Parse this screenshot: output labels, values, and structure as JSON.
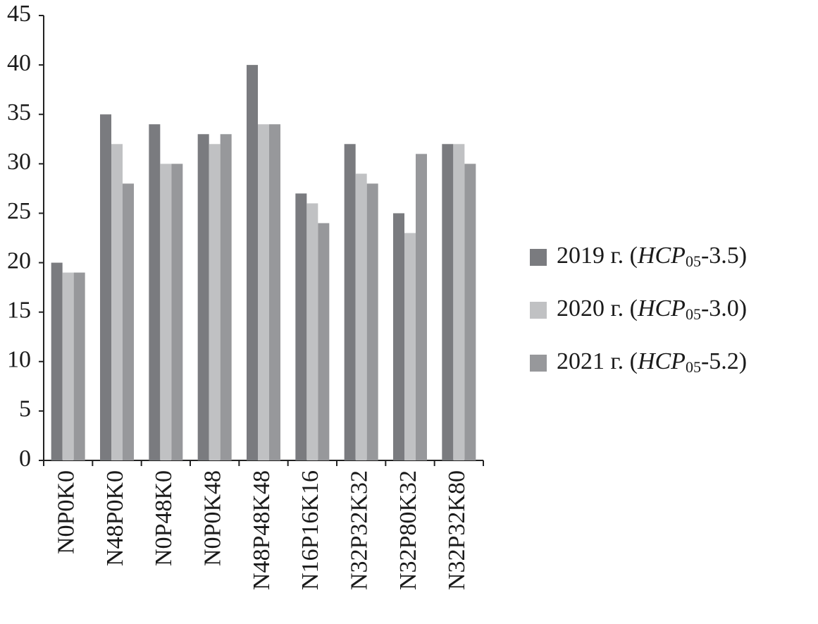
{
  "chart_data": {
    "type": "bar",
    "categories": [
      "N0P0K0",
      "N48P0K0",
      "N0P48K0",
      "N0P0K48",
      "N48P48K48",
      "N16P16K16",
      "N32P32K32",
      "N32P80K32",
      "N32P32K80"
    ],
    "series": [
      {
        "name": "2019 г. (HCP05-3.5)",
        "color": "#7a7b7f",
        "values": [
          20,
          35,
          34,
          33,
          40,
          27,
          32,
          25,
          32
        ]
      },
      {
        "name": "2020 г. (HCP05-3.0)",
        "color": "#c0c1c3",
        "values": [
          19,
          32,
          30,
          32,
          34,
          26,
          29,
          23,
          32
        ]
      },
      {
        "name": "2021 г. (HCP05-5.2)",
        "color": "#97989b",
        "values": [
          19,
          28,
          30,
          33,
          34,
          24,
          28,
          31,
          30
        ]
      }
    ],
    "ylim": [
      0,
      45
    ],
    "yticks": [
      0,
      5,
      10,
      15,
      20,
      25,
      30,
      35,
      40,
      45
    ],
    "grid": false,
    "legend": "right"
  }
}
